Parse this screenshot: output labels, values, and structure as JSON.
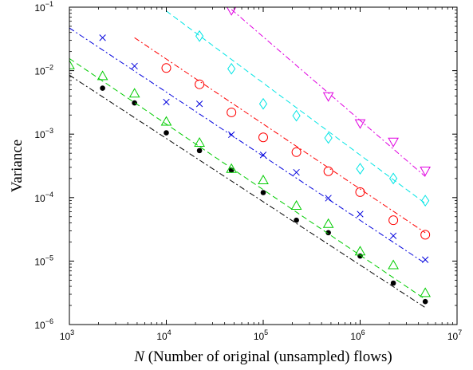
{
  "chart_data": {
    "type": "scatter",
    "title": "",
    "xlabel": {
      "var": "N",
      "rest": " (Number of original (unsampled) flows)"
    },
    "ylabel": "Variance",
    "xscale": "log",
    "yscale": "log",
    "xlim": [
      1000,
      10000000
    ],
    "ylim": [
      1e-06,
      0.1
    ],
    "x_ticks": [
      {
        "base": "10",
        "exp": "3",
        "value": 1000
      },
      {
        "base": "10",
        "exp": "4",
        "value": 10000
      },
      {
        "base": "10",
        "exp": "5",
        "value": 100000
      },
      {
        "base": "10",
        "exp": "6",
        "value": 1000000
      },
      {
        "base": "10",
        "exp": "7",
        "value": 10000000
      }
    ],
    "y_ticks": [
      {
        "base": "10",
        "exp": "−6",
        "value": 1e-06
      },
      {
        "base": "10",
        "exp": "−5",
        "value": 1e-05
      },
      {
        "base": "10",
        "exp": "−4",
        "value": 0.0001
      },
      {
        "base": "10",
        "exp": "−3",
        "value": 0.001
      },
      {
        "base": "10",
        "exp": "−2",
        "value": 0.01
      },
      {
        "base": "10",
        "exp": "−1",
        "value": 0.1
      }
    ],
    "grid": false,
    "legend": "none",
    "series": [
      {
        "marker": "dot",
        "color": "#000000",
        "line_style": "dash-dot",
        "line": {
          "x": [
            1000,
            4700000
          ],
          "y": [
            0.0085,
            1.85e-06
          ]
        },
        "x": [
          2200,
          4700,
          10000,
          22000,
          47000,
          100000,
          220000,
          470000,
          1000000,
          2200000,
          4700000
        ],
        "y": [
          0.0053,
          0.0031,
          0.00105,
          0.00055,
          0.00027,
          0.00012,
          4.4e-05,
          2.8e-05,
          1.2e-05,
          4.5e-06,
          2.3e-06
        ]
      },
      {
        "marker": "triangle-up",
        "color": "#00cc00",
        "line_style": "dashed",
        "line": {
          "x": [
            1000,
            4700000
          ],
          "y": [
            0.0155,
            2.5e-06
          ]
        },
        "x": [
          1000,
          2200,
          4700,
          10000,
          22000,
          47000,
          100000,
          220000,
          470000,
          1000000,
          2200000,
          4700000
        ],
        "y": [
          0.012,
          0.0081,
          0.0043,
          0.00155,
          0.00072,
          0.00028,
          0.000185,
          7.35e-05,
          3.8e-05,
          1.4e-05,
          8.5e-06,
          3.1e-06
        ]
      },
      {
        "marker": "x",
        "color": "#0000dd",
        "line_style": "dash-dot",
        "line": {
          "x": [
            1000,
            4700000
          ],
          "y": [
            0.047,
            9.2e-06
          ]
        },
        "x": [
          2200,
          4700,
          10000,
          22000,
          47000,
          100000,
          220000,
          470000,
          1000000,
          2200000,
          4700000
        ],
        "y": [
          0.033,
          0.0118,
          0.0032,
          0.003,
          0.00098,
          0.00047,
          0.00025,
          9.8e-05,
          5.5e-05,
          2.5e-05,
          1.05e-05
        ]
      },
      {
        "marker": "circle",
        "color": "#ff0000",
        "line_style": "dash-dot",
        "line": {
          "x": [
            4700,
            4700000
          ],
          "y": [
            0.033,
            2.8e-05
          ]
        },
        "x": [
          10000,
          22000,
          47000,
          100000,
          220000,
          470000,
          1000000,
          2200000,
          4700000
        ],
        "y": [
          0.011,
          0.0061,
          0.0022,
          0.00089,
          0.00052,
          0.00026,
          0.000122,
          4.4e-05,
          2.6e-05
        ]
      },
      {
        "marker": "diamond",
        "color": "#00e5e5",
        "line_style": "dashed",
        "line": {
          "x": [
            10000,
            4700000
          ],
          "y": [
            0.087,
            8.1e-05
          ]
        },
        "x": [
          22000,
          47000,
          100000,
          220000,
          470000,
          1000000,
          2200000,
          4700000
        ],
        "y": [
          0.035,
          0.0107,
          0.003,
          0.00195,
          0.00087,
          0.000285,
          0.0002,
          8.95e-05
        ]
      },
      {
        "marker": "triangle-down",
        "color": "#e000e0",
        "line_style": "dash-dot",
        "line": {
          "x": [
            47000,
            4700000
          ],
          "y": [
            0.092,
            0.000215
          ]
        },
        "x": [
          47000,
          470000,
          1000000,
          2200000,
          4700000
        ],
        "y": [
          0.091,
          0.004,
          0.0015,
          0.00077,
          0.00027
        ]
      }
    ]
  }
}
